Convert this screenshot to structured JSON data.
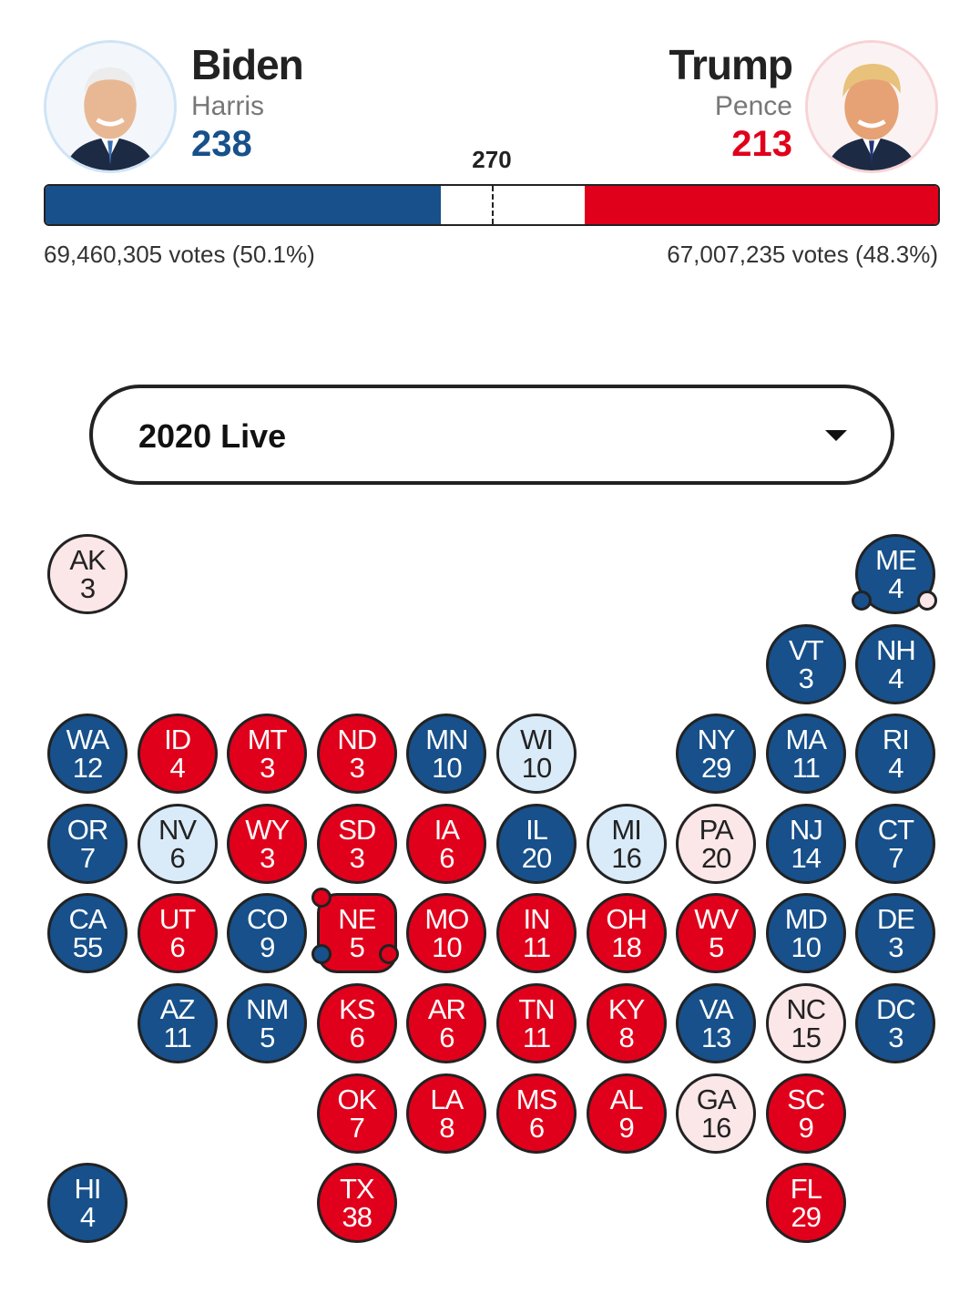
{
  "colors": {
    "dem": "#17508a",
    "rep": "#e0001b",
    "lean_dem": "#d9eaf8",
    "lean_rep": "#fbe6e8"
  },
  "dem": {
    "name": "Biden",
    "vp": "Harris",
    "electoral_votes": "238",
    "electoral_value": 238,
    "popular": "69,460,305 votes (50.1%)",
    "avatar_icon": "biden-portrait-icon"
  },
  "rep": {
    "name": "Trump",
    "vp": "Pence",
    "electoral_votes": "213",
    "electoral_value": 213,
    "popular": "67,007,235 votes (48.3%)",
    "avatar_icon": "trump-portrait-icon"
  },
  "threshold": {
    "label": "270",
    "value": 270,
    "total": 538
  },
  "selector": {
    "label": "2020 Live",
    "icon": "caret-down-icon"
  },
  "states": [
    {
      "abbr": "AK",
      "ev": "3",
      "status": "LR",
      "row": 0,
      "col": 0
    },
    {
      "abbr": "ME",
      "ev": "4",
      "status": "D",
      "row": 0,
      "col": 9,
      "dots": [
        "D",
        "LR"
      ]
    },
    {
      "abbr": "VT",
      "ev": "3",
      "status": "D",
      "row": 1,
      "col": 8
    },
    {
      "abbr": "NH",
      "ev": "4",
      "status": "D",
      "row": 1,
      "col": 9
    },
    {
      "abbr": "WA",
      "ev": "12",
      "status": "D",
      "row": 2,
      "col": 0
    },
    {
      "abbr": "ID",
      "ev": "4",
      "status": "R",
      "row": 2,
      "col": 1
    },
    {
      "abbr": "MT",
      "ev": "3",
      "status": "R",
      "row": 2,
      "col": 2
    },
    {
      "abbr": "ND",
      "ev": "3",
      "status": "R",
      "row": 2,
      "col": 3
    },
    {
      "abbr": "MN",
      "ev": "10",
      "status": "D",
      "row": 2,
      "col": 4
    },
    {
      "abbr": "WI",
      "ev": "10",
      "status": "LD",
      "row": 2,
      "col": 5
    },
    {
      "abbr": "NY",
      "ev": "29",
      "status": "D",
      "row": 2,
      "col": 7
    },
    {
      "abbr": "MA",
      "ev": "11",
      "status": "D",
      "row": 2,
      "col": 8
    },
    {
      "abbr": "RI",
      "ev": "4",
      "status": "D",
      "row": 2,
      "col": 9
    },
    {
      "abbr": "OR",
      "ev": "7",
      "status": "D",
      "row": 3,
      "col": 0
    },
    {
      "abbr": "NV",
      "ev": "6",
      "status": "LD",
      "row": 3,
      "col": 1
    },
    {
      "abbr": "WY",
      "ev": "3",
      "status": "R",
      "row": 3,
      "col": 2
    },
    {
      "abbr": "SD",
      "ev": "3",
      "status": "R",
      "row": 3,
      "col": 3
    },
    {
      "abbr": "IA",
      "ev": "6",
      "status": "R",
      "row": 3,
      "col": 4
    },
    {
      "abbr": "IL",
      "ev": "20",
      "status": "D",
      "row": 3,
      "col": 5
    },
    {
      "abbr": "MI",
      "ev": "16",
      "status": "LD",
      "row": 3,
      "col": 6
    },
    {
      "abbr": "PA",
      "ev": "20",
      "status": "LR",
      "row": 3,
      "col": 7
    },
    {
      "abbr": "NJ",
      "ev": "14",
      "status": "D",
      "row": 3,
      "col": 8
    },
    {
      "abbr": "CT",
      "ev": "7",
      "status": "D",
      "row": 3,
      "col": 9
    },
    {
      "abbr": "CA",
      "ev": "55",
      "status": "D",
      "row": 4,
      "col": 0
    },
    {
      "abbr": "UT",
      "ev": "6",
      "status": "R",
      "row": 4,
      "col": 1
    },
    {
      "abbr": "CO",
      "ev": "9",
      "status": "D",
      "row": 4,
      "col": 2
    },
    {
      "abbr": "NE",
      "ev": "5",
      "status": "R",
      "row": 4,
      "col": 3,
      "dots": [
        "R",
        "D",
        "R"
      ]
    },
    {
      "abbr": "MO",
      "ev": "10",
      "status": "R",
      "row": 4,
      "col": 4
    },
    {
      "abbr": "IN",
      "ev": "11",
      "status": "R",
      "row": 4,
      "col": 5
    },
    {
      "abbr": "OH",
      "ev": "18",
      "status": "R",
      "row": 4,
      "col": 6
    },
    {
      "abbr": "WV",
      "ev": "5",
      "status": "R",
      "row": 4,
      "col": 7
    },
    {
      "abbr": "MD",
      "ev": "10",
      "status": "D",
      "row": 4,
      "col": 8
    },
    {
      "abbr": "DE",
      "ev": "3",
      "status": "D",
      "row": 4,
      "col": 9
    },
    {
      "abbr": "AZ",
      "ev": "11",
      "status": "D",
      "row": 5,
      "col": 1
    },
    {
      "abbr": "NM",
      "ev": "5",
      "status": "D",
      "row": 5,
      "col": 2
    },
    {
      "abbr": "KS",
      "ev": "6",
      "status": "R",
      "row": 5,
      "col": 3
    },
    {
      "abbr": "AR",
      "ev": "6",
      "status": "R",
      "row": 5,
      "col": 4
    },
    {
      "abbr": "TN",
      "ev": "11",
      "status": "R",
      "row": 5,
      "col": 5
    },
    {
      "abbr": "KY",
      "ev": "8",
      "status": "R",
      "row": 5,
      "col": 6
    },
    {
      "abbr": "VA",
      "ev": "13",
      "status": "D",
      "row": 5,
      "col": 7
    },
    {
      "abbr": "NC",
      "ev": "15",
      "status": "LR",
      "row": 5,
      "col": 8
    },
    {
      "abbr": "DC",
      "ev": "3",
      "status": "D",
      "row": 5,
      "col": 9
    },
    {
      "abbr": "OK",
      "ev": "7",
      "status": "R",
      "row": 6,
      "col": 3
    },
    {
      "abbr": "LA",
      "ev": "8",
      "status": "R",
      "row": 6,
      "col": 4
    },
    {
      "abbr": "MS",
      "ev": "6",
      "status": "R",
      "row": 6,
      "col": 5
    },
    {
      "abbr": "AL",
      "ev": "9",
      "status": "R",
      "row": 6,
      "col": 6
    },
    {
      "abbr": "GA",
      "ev": "16",
      "status": "LR",
      "row": 6,
      "col": 7
    },
    {
      "abbr": "SC",
      "ev": "9",
      "status": "R",
      "row": 6,
      "col": 8
    },
    {
      "abbr": "HI",
      "ev": "4",
      "status": "D",
      "row": 7,
      "col": 0
    },
    {
      "abbr": "TX",
      "ev": "38",
      "status": "R",
      "row": 7,
      "col": 3
    },
    {
      "abbr": "FL",
      "ev": "29",
      "status": "R",
      "row": 7,
      "col": 8
    }
  ]
}
